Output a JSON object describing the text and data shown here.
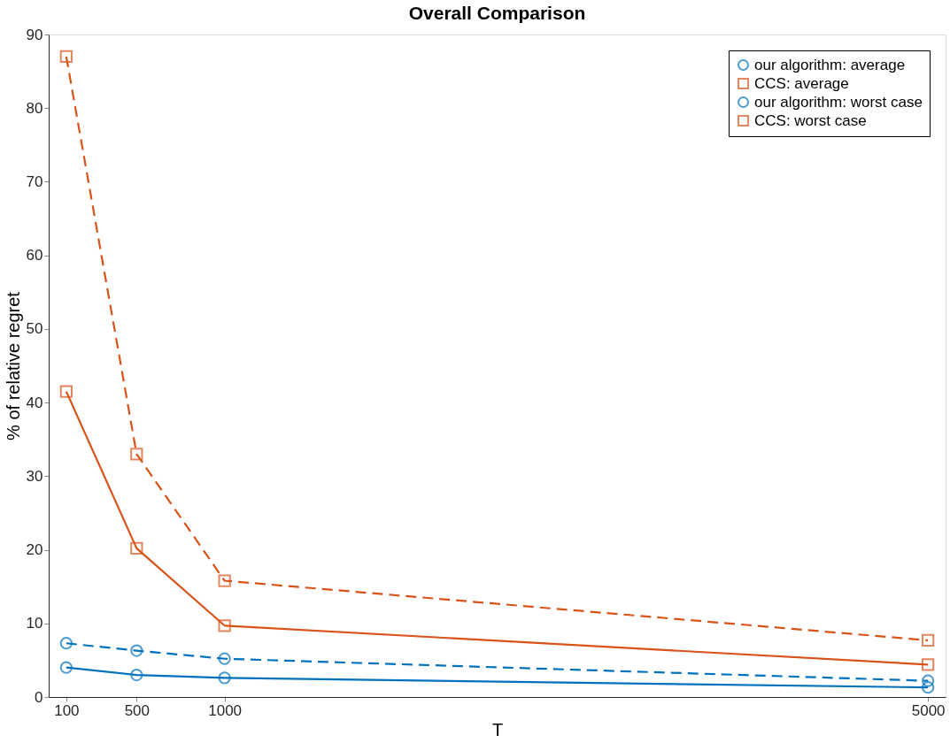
{
  "chart_data": {
    "type": "line",
    "title": "Overall Comparison",
    "xlabel": "T",
    "ylabel": "% of relative regret",
    "x": [
      100,
      500,
      1000,
      5000
    ],
    "series": [
      {
        "name": "our algorithm: average",
        "color": "#0072bd",
        "values": [
          4.0,
          3.0,
          2.6,
          1.3
        ],
        "marker": "circle",
        "line_style": "solid"
      },
      {
        "name": "CCS: average",
        "color": "#d95319",
        "values": [
          41.5,
          20.2,
          9.7,
          4.4
        ],
        "marker": "square",
        "line_style": "solid"
      },
      {
        "name": "our algorithm: worst case",
        "color": "#0072bd",
        "values": [
          7.3,
          6.3,
          5.2,
          2.2
        ],
        "marker": "circle",
        "line_style": "dashed"
      },
      {
        "name": "CCS: worst case",
        "color": "#d95319",
        "values": [
          87.0,
          33.0,
          15.8,
          7.7
        ],
        "marker": "square",
        "line_style": "dashed"
      }
    ],
    "xlim": [
      0,
      5100
    ],
    "ylim": [
      0,
      90
    ],
    "xticks": [
      100,
      500,
      {
        "value": 1000,
        "label": "1000"
      },
      {
        "value": 5000,
        "label": "5000"
      }
    ],
    "yticks": [
      0,
      10,
      20,
      30,
      40,
      50,
      60,
      70,
      80,
      90
    ],
    "legend": "top right",
    "grid": false
  }
}
